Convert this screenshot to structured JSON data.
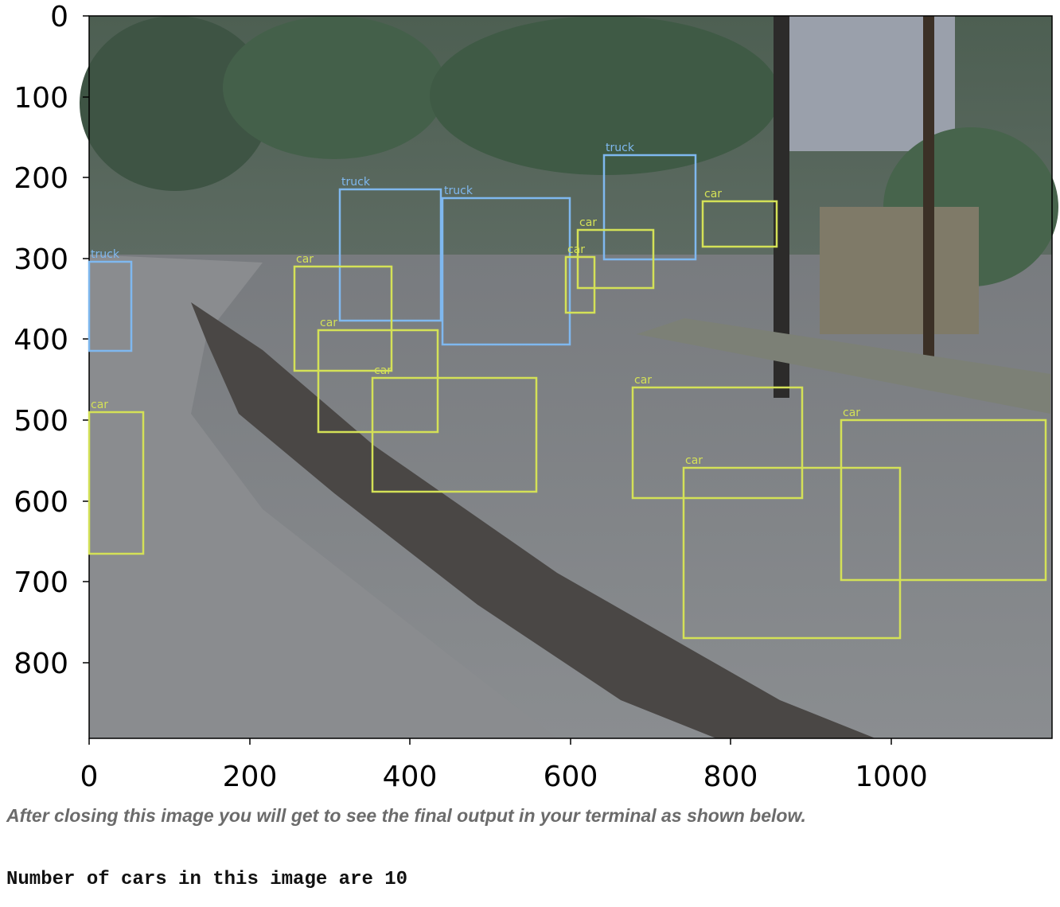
{
  "figure": {
    "x_ticks": [
      "0",
      "200",
      "400",
      "600",
      "800",
      "1000"
    ],
    "y_ticks": [
      "0",
      "100",
      "200",
      "300",
      "400",
      "500",
      "600",
      "700",
      "800"
    ],
    "detection_colors": {
      "car": "#d4e157",
      "truck": "#7fb8ef"
    },
    "detections": [
      {
        "label": "truck"
      },
      {
        "label": "truck"
      },
      {
        "label": "truck"
      },
      {
        "label": "truck"
      },
      {
        "label": "car"
      },
      {
        "label": "car"
      },
      {
        "label": "car"
      },
      {
        "label": "car"
      },
      {
        "label": "car"
      },
      {
        "label": "car"
      },
      {
        "label": "car"
      },
      {
        "label": "car"
      },
      {
        "label": "car"
      },
      {
        "label": "car"
      }
    ]
  },
  "caption": "After closing this image you will get to see the final output in your terminal as shown below.",
  "terminal_output": "Number of cars in this image are 10"
}
